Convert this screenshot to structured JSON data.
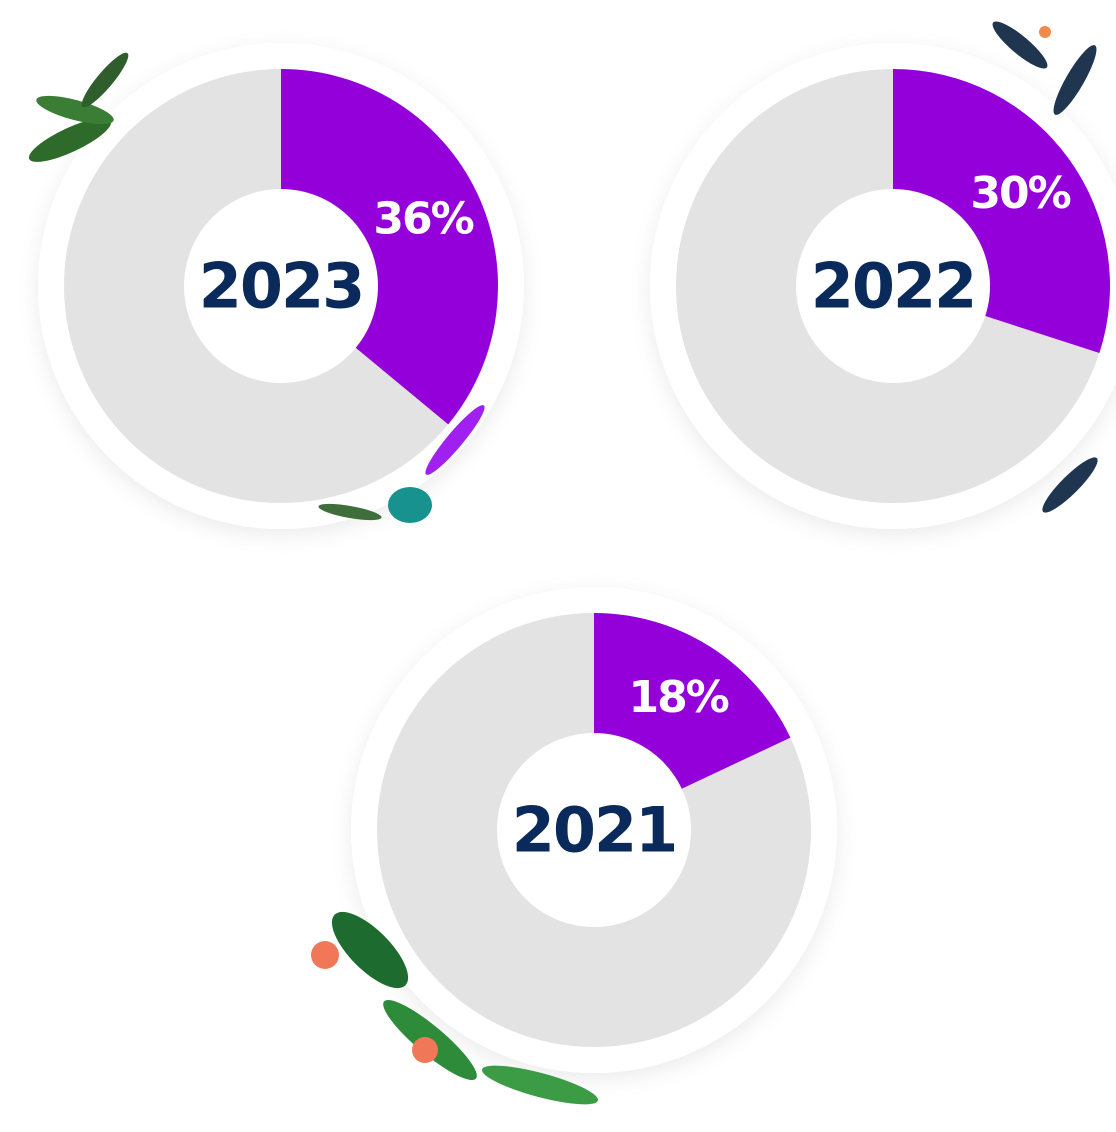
{
  "chart_data": [
    {
      "type": "pie",
      "center_label": "2023",
      "values": [
        36
      ],
      "value_labels": [
        "36%"
      ],
      "color": "#9400d9"
    },
    {
      "type": "pie",
      "center_label": "2022",
      "values": [
        30
      ],
      "value_labels": [
        "30%"
      ],
      "color": "#9400d9"
    },
    {
      "type": "pie",
      "center_label": "2021",
      "values": [
        18
      ],
      "value_labels": [
        "18%"
      ],
      "color": "#9400d9"
    }
  ]
}
